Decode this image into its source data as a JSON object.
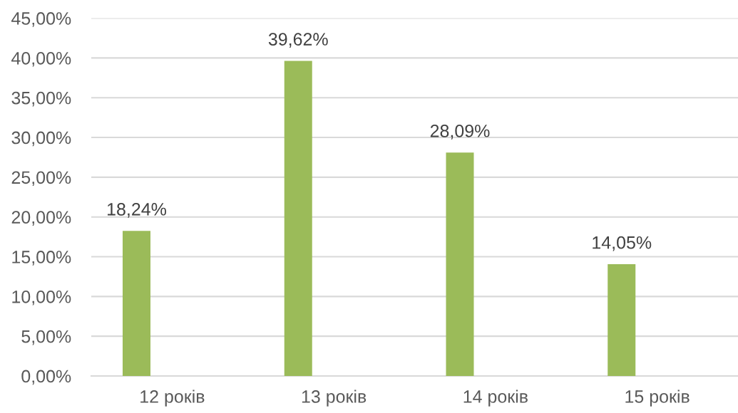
{
  "chart_data": {
    "type": "bar",
    "categories": [
      "12 років",
      "13 років",
      "14 років",
      "15 років"
    ],
    "values": [
      18.24,
      39.62,
      28.09,
      14.05
    ],
    "value_labels": [
      "18,24%",
      "39,62%",
      "28,09%",
      "14,05%"
    ],
    "color": "#9bbb59",
    "ylim": [
      0,
      45
    ],
    "yticks": [
      {
        "value": 0,
        "label": "0,00%"
      },
      {
        "value": 5,
        "label": "5,00%"
      },
      {
        "value": 10,
        "label": "10,00%"
      },
      {
        "value": 15,
        "label": "15,00%"
      },
      {
        "value": 20,
        "label": "20,00%"
      },
      {
        "value": 25,
        "label": "25,00%"
      },
      {
        "value": 30,
        "label": "30,00%"
      },
      {
        "value": 35,
        "label": "35,00%"
      },
      {
        "value": 40,
        "label": "40,00%"
      },
      {
        "value": 45,
        "label": "45,00%"
      }
    ],
    "grid": "y"
  }
}
